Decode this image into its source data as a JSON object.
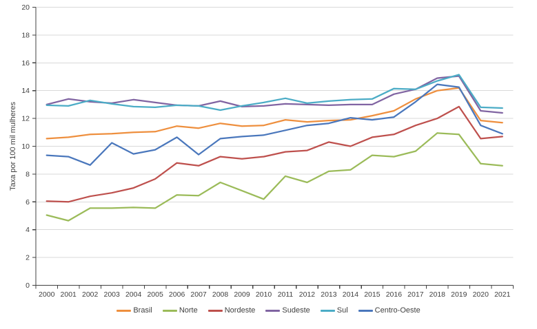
{
  "chart_data": {
    "type": "line",
    "title": "",
    "xlabel": "",
    "ylabel": "Taxa por 100 mil mulheres",
    "ylim": [
      0,
      20
    ],
    "ytick_step": 2,
    "grid": "horizontal",
    "legend_position": "bottom",
    "x": [
      "2000",
      "2001",
      "2002",
      "2003",
      "2004",
      "2005",
      "2006",
      "2007",
      "2008",
      "2009",
      "2010",
      "2011",
      "2012",
      "2013",
      "2014",
      "2015",
      "2016",
      "2017",
      "2018",
      "2019",
      "2020",
      "2021"
    ],
    "series": [
      {
        "name": "Brasil",
        "color": "#EE8F3E",
        "values": [
          10.55,
          10.65,
          10.85,
          10.9,
          11.0,
          11.05,
          11.45,
          11.3,
          11.65,
          11.45,
          11.5,
          11.9,
          11.75,
          11.85,
          11.9,
          12.2,
          12.55,
          13.4,
          14.0,
          14.2,
          11.85,
          11.7
        ]
      },
      {
        "name": "Norte",
        "color": "#9BBB59",
        "values": [
          5.05,
          4.65,
          5.55,
          5.55,
          5.6,
          5.55,
          6.5,
          6.45,
          7.4,
          6.8,
          6.2,
          7.85,
          7.4,
          8.2,
          8.3,
          9.35,
          9.25,
          9.65,
          10.95,
          10.85,
          8.75,
          8.6
        ]
      },
      {
        "name": "Nordeste",
        "color": "#BE504D",
        "values": [
          6.05,
          6.0,
          6.4,
          6.65,
          7.0,
          7.65,
          8.8,
          8.6,
          9.25,
          9.1,
          9.25,
          9.6,
          9.7,
          10.3,
          10.0,
          10.65,
          10.85,
          11.5,
          12.0,
          12.85,
          10.55,
          10.7
        ]
      },
      {
        "name": "Sudeste",
        "color": "#8064A2",
        "values": [
          13.0,
          13.4,
          13.2,
          13.1,
          13.35,
          13.15,
          12.95,
          12.9,
          13.25,
          12.85,
          12.9,
          13.05,
          13.0,
          12.95,
          13.0,
          13.0,
          13.75,
          14.1,
          14.9,
          15.05,
          12.55,
          12.4
        ]
      },
      {
        "name": "Sul",
        "color": "#4BACC6",
        "values": [
          12.95,
          12.9,
          13.3,
          13.05,
          12.85,
          12.8,
          12.95,
          12.9,
          12.6,
          12.9,
          13.15,
          13.45,
          13.1,
          13.25,
          13.35,
          13.4,
          14.15,
          14.1,
          14.7,
          15.15,
          12.8,
          12.75
        ]
      },
      {
        "name": "Centro-Oeste",
        "color": "#4A77BC",
        "values": [
          9.35,
          9.25,
          8.65,
          10.25,
          9.45,
          9.75,
          10.65,
          9.4,
          10.55,
          10.7,
          10.8,
          11.15,
          11.5,
          11.65,
          12.05,
          11.9,
          12.1,
          13.2,
          14.45,
          14.25,
          11.5,
          10.9
        ]
      }
    ],
    "colors": {
      "grid": "#D9D9D9",
      "axis": "#404040",
      "tick_text": "#3f3f3f"
    }
  }
}
